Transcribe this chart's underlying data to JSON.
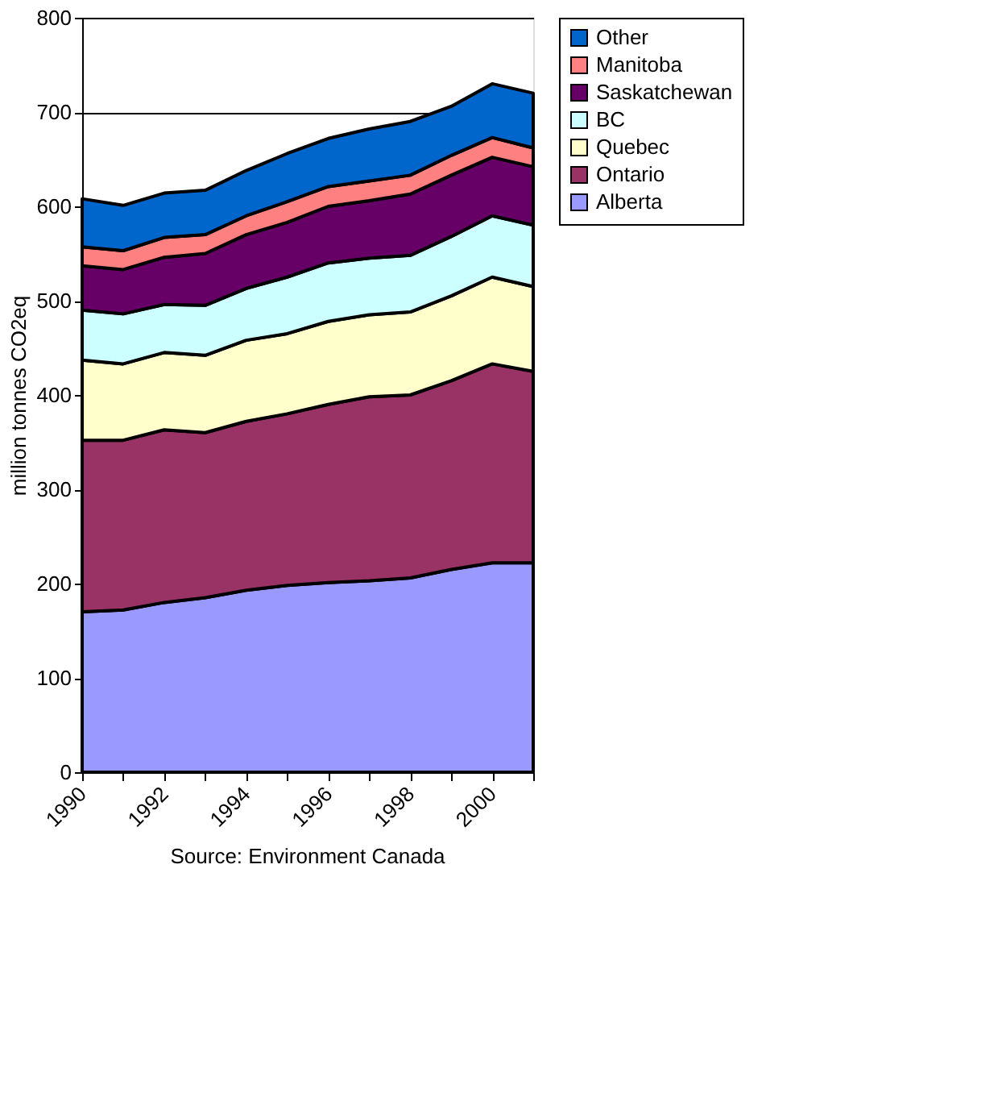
{
  "chart_data": {
    "type": "area",
    "stacked": true,
    "ylabel": "million tonnes CO2eq",
    "categories": [
      "1990",
      null,
      "1992",
      null,
      "1994",
      null,
      "1996",
      null,
      "1998",
      null,
      "2000",
      null
    ],
    "ylim": [
      0,
      800
    ],
    "yticks": [
      0,
      100,
      200,
      300,
      400,
      500,
      600,
      700,
      800
    ],
    "grid": "y",
    "legend": "right",
    "annotations": [
      "Source: Environment Canada"
    ],
    "series": [
      {
        "name": "Alberta",
        "color": "#9999ff",
        "values": [
          170,
          172,
          180,
          185,
          193,
          198,
          201,
          203,
          206,
          215,
          222,
          222
        ]
      },
      {
        "name": "Ontario",
        "color": "#993366",
        "values": [
          182,
          180,
          183,
          175,
          179,
          182,
          189,
          195,
          194,
          200,
          211,
          203
        ]
      },
      {
        "name": "Quebec",
        "color": "#ffffcc",
        "values": [
          85,
          81,
          82,
          82,
          86,
          85,
          88,
          87,
          88,
          90,
          92,
          90
        ]
      },
      {
        "name": "BC",
        "color": "#ccffff",
        "values": [
          53,
          53,
          51,
          53,
          55,
          60,
          62,
          60,
          60,
          63,
          65,
          65
        ]
      },
      {
        "name": "Saskatchewan",
        "color": "#660066",
        "values": [
          47,
          47,
          50,
          55,
          57,
          58,
          60,
          61,
          65,
          65,
          62,
          62
        ]
      },
      {
        "name": "Manitoba",
        "color": "#ff8080",
        "values": [
          20,
          20,
          21,
          20,
          20,
          22,
          21,
          21,
          20,
          21,
          21,
          20
        ]
      },
      {
        "name": "Other",
        "color": "#0066cc",
        "values": [
          51,
          48,
          47,
          47,
          48,
          51,
          51,
          55,
          57,
          52,
          57,
          58
        ]
      }
    ]
  }
}
